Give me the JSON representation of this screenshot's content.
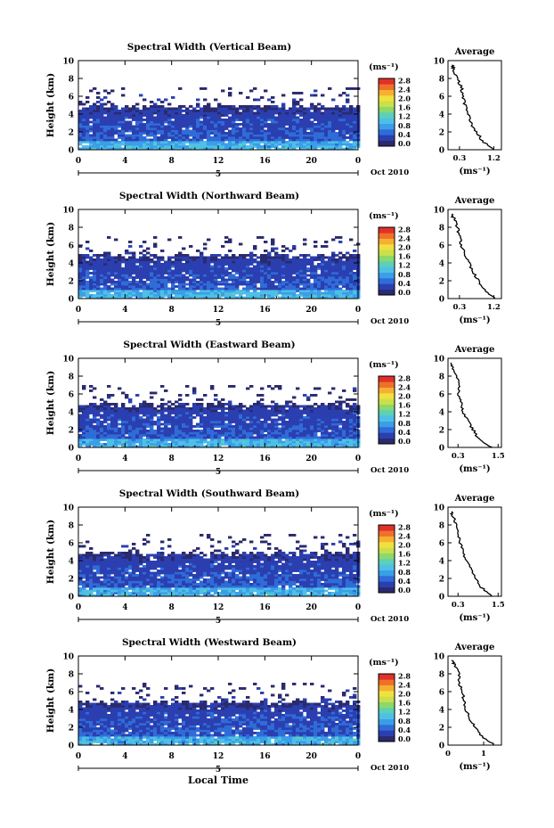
{
  "figure": {
    "xlabel_bottom": "Local Time",
    "date_label": "Oct 2010",
    "day_marker": "5",
    "colorbar_unit": "(ms⁻¹)",
    "colorbar_ticks": [
      "0.0",
      "0.4",
      "0.8",
      "1.2",
      "1.6",
      "2.0",
      "2.4",
      "2.8"
    ],
    "colorbar_colors": [
      "#2a2a6e",
      "#2b3fb0",
      "#2f6cd8",
      "#3a9ee8",
      "#4ec0e6",
      "#5cd0b8",
      "#8cd86a",
      "#c9e04a",
      "#f0e040",
      "#f6b030",
      "#f0702a",
      "#e0302a"
    ],
    "profile_title": "Average",
    "profile_xlabel": "(ms⁻¹)"
  },
  "chart_data": [
    {
      "type": "heatmap",
      "title": "Spectral Width (Vertical Beam)",
      "ylabel": "Height (km)",
      "ylim": [
        0,
        10
      ],
      "yticks": [
        "0",
        "2",
        "4",
        "6",
        "8",
        "10"
      ],
      "xlim": [
        0,
        24
      ],
      "xticks": [
        "0",
        "4",
        "8",
        "12",
        "16",
        "20",
        "0"
      ],
      "colorbar_range": [
        0.0,
        2.8
      ],
      "top_echo_km": 5.0,
      "profile": {
        "xticks": [
          "0.3",
          "1.2"
        ],
        "xlim": [
          0.0,
          1.4
        ],
        "heights": [
          0,
          1,
          2,
          3,
          4,
          5,
          6,
          7,
          8,
          9,
          9.5
        ],
        "values": [
          1.2,
          0.9,
          0.75,
          0.6,
          0.55,
          0.45,
          0.4,
          0.35,
          0.25,
          0.15,
          0.1
        ]
      }
    },
    {
      "type": "heatmap",
      "title": "Spectral Width (Northward Beam)",
      "ylabel": "Height (km)",
      "ylim": [
        0,
        10
      ],
      "yticks": [
        "0",
        "2",
        "4",
        "6",
        "8",
        "10"
      ],
      "xlim": [
        0,
        24
      ],
      "xticks": [
        "0",
        "4",
        "8",
        "12",
        "16",
        "20",
        "0"
      ],
      "colorbar_range": [
        0.0,
        2.8
      ],
      "top_echo_km": 5.0,
      "profile": {
        "xticks": [
          "0.3",
          "1.2"
        ],
        "xlim": [
          0.0,
          1.4
        ],
        "heights": [
          0,
          1,
          2,
          3,
          4,
          5,
          6,
          7,
          8,
          9,
          9.5
        ],
        "values": [
          1.25,
          0.95,
          0.8,
          0.65,
          0.55,
          0.45,
          0.35,
          0.3,
          0.25,
          0.15,
          0.1
        ]
      }
    },
    {
      "type": "heatmap",
      "title": "Spectral Width (Eastward Beam)",
      "ylabel": "Height (km)",
      "ylim": [
        0,
        10
      ],
      "yticks": [
        "0",
        "2",
        "4",
        "6",
        "8",
        "10"
      ],
      "xlim": [
        0,
        24
      ],
      "xticks": [
        "0",
        "4",
        "8",
        "12",
        "16",
        "20",
        "0"
      ],
      "colorbar_range": [
        0.0,
        2.8
      ],
      "top_echo_km": 5.0,
      "profile": {
        "xticks": [
          "0.3",
          "1.5"
        ],
        "xlim": [
          0.0,
          1.6
        ],
        "heights": [
          0,
          1,
          2,
          3,
          4,
          5,
          6,
          7,
          8,
          9,
          9.5
        ],
        "values": [
          1.3,
          0.9,
          0.75,
          0.6,
          0.45,
          0.4,
          0.3,
          0.35,
          0.25,
          0.15,
          0.1
        ]
      }
    },
    {
      "type": "heatmap",
      "title": "Spectral Width (Southward Beam)",
      "ylabel": "Height (km)",
      "ylim": [
        0,
        10
      ],
      "yticks": [
        "0",
        "2",
        "4",
        "6",
        "8",
        "10"
      ],
      "xlim": [
        0,
        24
      ],
      "xticks": [
        "0",
        "4",
        "8",
        "12",
        "16",
        "20",
        "0"
      ],
      "colorbar_range": [
        0.0,
        2.8
      ],
      "top_echo_km": 5.0,
      "profile": {
        "xticks": [
          "0.3",
          "1.5"
        ],
        "xlim": [
          0.0,
          1.6
        ],
        "heights": [
          0,
          1,
          2,
          3,
          4,
          5,
          6,
          7,
          8,
          9,
          9.5
        ],
        "values": [
          1.3,
          1.0,
          0.85,
          0.7,
          0.55,
          0.45,
          0.35,
          0.3,
          0.25,
          0.15,
          0.1
        ]
      }
    },
    {
      "type": "heatmap",
      "title": "Spectral Width (Westward Beam)",
      "ylabel": "Height (km)",
      "ylim": [
        0,
        10
      ],
      "yticks": [
        "0",
        "2",
        "4",
        "6",
        "8",
        "10"
      ],
      "xlim": [
        0,
        24
      ],
      "xticks": [
        "0",
        "4",
        "8",
        "12",
        "16",
        "20",
        "0"
      ],
      "colorbar_range": [
        0.0,
        2.8
      ],
      "top_echo_km": 5.0,
      "profile": {
        "xticks": [
          "0",
          "1"
        ],
        "xlim": [
          0.0,
          1.5
        ],
        "heights": [
          0,
          1,
          2,
          3,
          4,
          5,
          6,
          7,
          8,
          9,
          9.5
        ],
        "values": [
          1.3,
          0.95,
          0.75,
          0.6,
          0.5,
          0.45,
          0.4,
          0.3,
          0.3,
          0.2,
          0.1
        ]
      }
    }
  ]
}
